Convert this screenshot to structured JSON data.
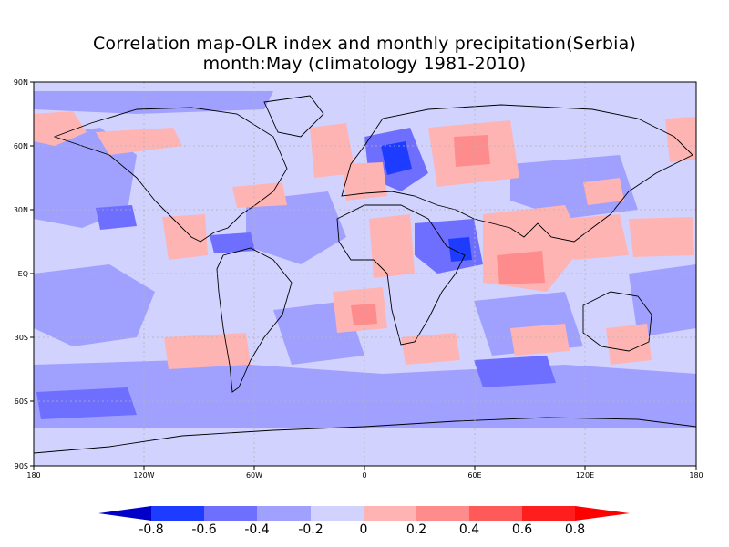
{
  "title": {
    "line1": "Correlation map-OLR index and monthly precipitation(Serbia)",
    "line2": "month:May (climatology 1981-2010)"
  },
  "axes": {
    "lat_labels": [
      "90N",
      "60N",
      "30N",
      "EQ",
      "30S",
      "60S",
      "90S"
    ],
    "lon_labels": [
      "180",
      "120W",
      "60W",
      "0",
      "60E",
      "120E",
      "180"
    ]
  },
  "colorbar": {
    "labels": [
      "-0.8",
      "-0.6",
      "-0.4",
      "-0.2",
      "0",
      "0.2",
      "0.4",
      "0.6",
      "0.8"
    ],
    "colors": [
      "#0000c8",
      "#1e3cff",
      "#6e6eff",
      "#a0a0ff",
      "#d2d2ff",
      "#ffb4b4",
      "#ff8c8c",
      "#ff5a5a",
      "#ff1e1e",
      "#ff0000"
    ]
  },
  "field_colors": {
    "land_outline": "#000000",
    "grid": "#b4b4b4"
  }
}
